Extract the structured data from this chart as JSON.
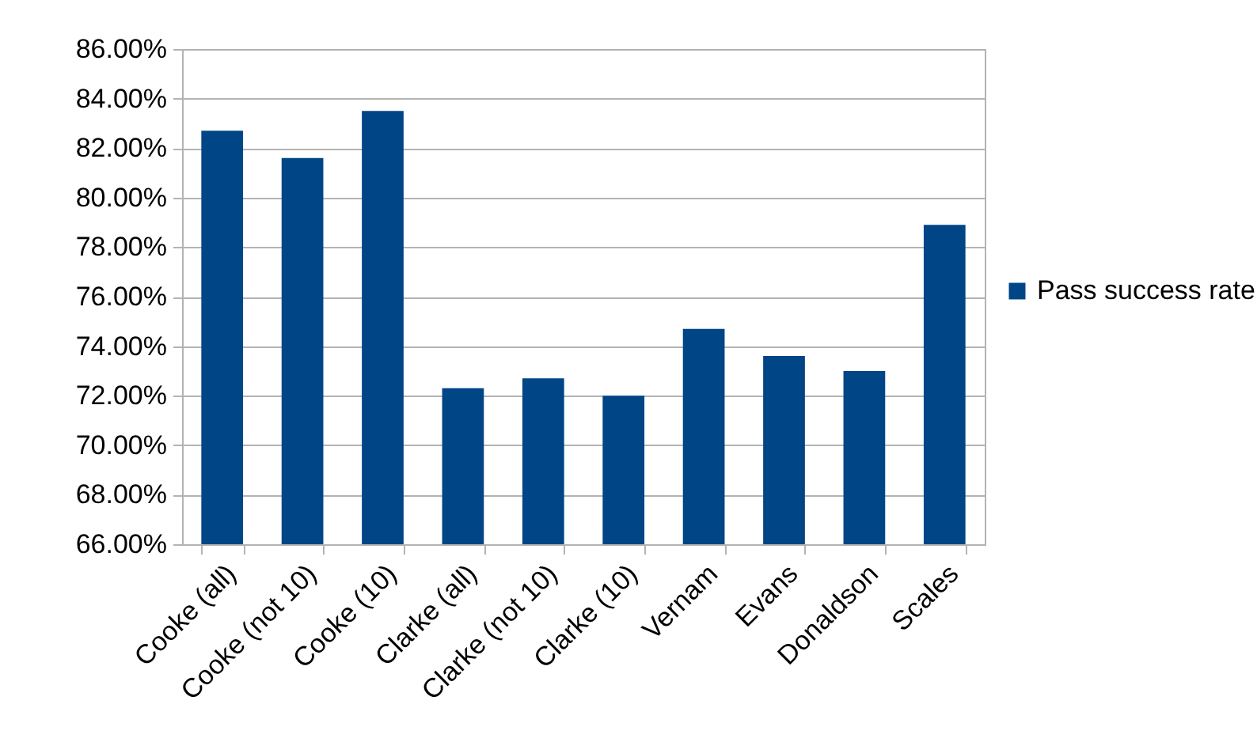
{
  "chart_data": {
    "type": "bar",
    "categories": [
      "Cooke (all)",
      "Cooke (not 10)",
      "Cooke (10)",
      "Clarke (all)",
      "Clarke (not 10)",
      "Clarke (10)",
      "Vernam",
      "Evans",
      "Donaldson",
      "Scales"
    ],
    "series": [
      {
        "name": "Pass success rate",
        "color": "#004586",
        "values": [
          82.7,
          81.6,
          83.5,
          72.3,
          72.7,
          72.0,
          74.7,
          73.6,
          73.0,
          78.9
        ]
      }
    ],
    "ylim": [
      66,
      86
    ],
    "yticks": [
      {
        "value": 66,
        "label": "66.00%"
      },
      {
        "value": 68,
        "label": "68.00%"
      },
      {
        "value": 70,
        "label": "70.00%"
      },
      {
        "value": 72,
        "label": "72.00%"
      },
      {
        "value": 74,
        "label": "74.00%"
      },
      {
        "value": 76,
        "label": "76.00%"
      },
      {
        "value": 78,
        "label": "78.00%"
      },
      {
        "value": 80,
        "label": "80.00%"
      },
      {
        "value": 82,
        "label": "82.00%"
      },
      {
        "value": 84,
        "label": "84.00%"
      },
      {
        "value": 86,
        "label": "86.00%"
      }
    ],
    "grid": "y",
    "legend": "right"
  }
}
